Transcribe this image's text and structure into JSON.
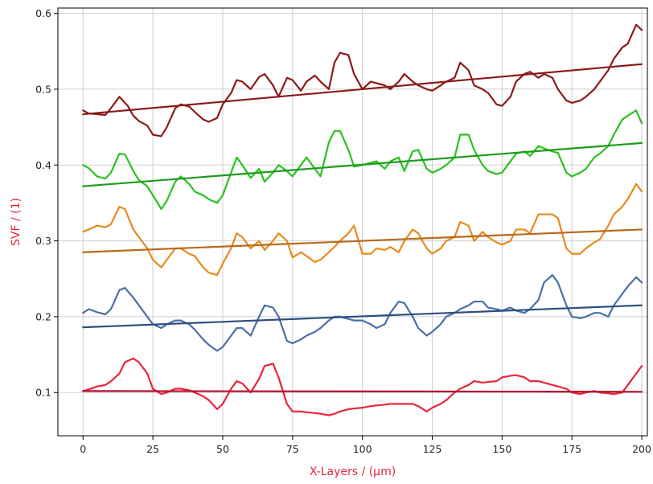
{
  "chart_data": {
    "type": "line",
    "title": "",
    "xlabel": "X-Layers / (μm)",
    "ylabel": "SVF / (1)",
    "label_color": "#e8253c",
    "xlim": [
      -9,
      202
    ],
    "ylim": [
      0.043,
      0.607
    ],
    "grid": true,
    "xticks": [
      {
        "value": 0,
        "label": "0"
      },
      {
        "value": 25,
        "label": "25"
      },
      {
        "value": 50,
        "label": "50"
      },
      {
        "value": 75,
        "label": "75"
      },
      {
        "value": 100,
        "label": "100"
      },
      {
        "value": 125,
        "label": "125"
      },
      {
        "value": 150,
        "label": "150"
      },
      {
        "value": 175,
        "label": "175"
      },
      {
        "value": 200,
        "label": "200"
      }
    ],
    "yticks": [
      {
        "value": 0.1,
        "label": "0.1"
      },
      {
        "value": 0.2,
        "label": "0.2"
      },
      {
        "value": 0.3,
        "label": "0.3"
      },
      {
        "value": 0.4,
        "label": "0.4"
      },
      {
        "value": 0.5,
        "label": "0.5"
      },
      {
        "value": 0.6,
        "label": "0.6"
      }
    ],
    "series": [
      {
        "color": "#8b1a1a",
        "x": [
          0,
          2,
          5,
          8,
          10,
          13,
          16,
          18,
          20,
          23,
          25,
          28,
          30,
          33,
          35,
          38,
          40,
          43,
          45,
          48,
          50,
          53,
          55,
          57,
          60,
          63,
          65,
          68,
          70,
          73,
          75,
          78,
          80,
          83,
          85,
          88,
          90,
          92,
          95,
          97,
          100,
          103,
          105,
          108,
          110,
          113,
          115,
          118,
          120,
          123,
          125,
          128,
          130,
          133,
          135,
          138,
          140,
          143,
          145,
          148,
          150,
          153,
          155,
          158,
          160,
          163,
          165,
          168,
          170,
          173,
          175,
          178,
          180,
          183,
          185,
          188,
          190,
          193,
          195,
          198,
          200
        ],
        "y": [
          0.472,
          0.468,
          0.467,
          0.466,
          0.475,
          0.49,
          0.478,
          0.465,
          0.458,
          0.452,
          0.44,
          0.438,
          0.45,
          0.475,
          0.48,
          0.477,
          0.47,
          0.46,
          0.457,
          0.462,
          0.48,
          0.495,
          0.512,
          0.51,
          0.5,
          0.516,
          0.52,
          0.505,
          0.49,
          0.515,
          0.512,
          0.498,
          0.51,
          0.518,
          0.51,
          0.5,
          0.535,
          0.548,
          0.545,
          0.52,
          0.5,
          0.51,
          0.508,
          0.505,
          0.5,
          0.51,
          0.52,
          0.51,
          0.505,
          0.5,
          0.498,
          0.505,
          0.51,
          0.515,
          0.535,
          0.525,
          0.505,
          0.5,
          0.495,
          0.48,
          0.478,
          0.49,
          0.51,
          0.52,
          0.523,
          0.515,
          0.52,
          0.515,
          0.5,
          0.485,
          0.482,
          0.485,
          0.49,
          0.5,
          0.51,
          0.525,
          0.54,
          0.555,
          0.56,
          0.585,
          0.578
        ]
      },
      {
        "color": "#8b1a1a",
        "x": [
          0,
          200
        ],
        "y": [
          0.467,
          0.533
        ]
      },
      {
        "color": "#2bc11f",
        "x": [
          0,
          2,
          5,
          8,
          10,
          13,
          15,
          18,
          20,
          23,
          25,
          28,
          30,
          33,
          35,
          38,
          40,
          43,
          45,
          48,
          50,
          53,
          55,
          57,
          60,
          63,
          65,
          68,
          70,
          73,
          75,
          78,
          80,
          83,
          85,
          88,
          90,
          92,
          95,
          97,
          100,
          103,
          105,
          108,
          110,
          113,
          115,
          118,
          120,
          123,
          125,
          128,
          130,
          133,
          135,
          138,
          140,
          143,
          145,
          148,
          150,
          153,
          155,
          158,
          160,
          163,
          165,
          168,
          170,
          173,
          175,
          178,
          180,
          183,
          185,
          188,
          190,
          193,
          195,
          198,
          200
        ],
        "y": [
          0.4,
          0.396,
          0.385,
          0.382,
          0.39,
          0.415,
          0.414,
          0.392,
          0.38,
          0.372,
          0.36,
          0.342,
          0.353,
          0.378,
          0.385,
          0.375,
          0.365,
          0.36,
          0.355,
          0.35,
          0.36,
          0.39,
          0.41,
          0.4,
          0.383,
          0.395,
          0.378,
          0.39,
          0.4,
          0.392,
          0.385,
          0.4,
          0.41,
          0.395,
          0.385,
          0.43,
          0.445,
          0.445,
          0.42,
          0.398,
          0.4,
          0.403,
          0.405,
          0.395,
          0.405,
          0.41,
          0.392,
          0.418,
          0.42,
          0.395,
          0.39,
          0.395,
          0.4,
          0.41,
          0.44,
          0.44,
          0.42,
          0.4,
          0.392,
          0.388,
          0.39,
          0.405,
          0.415,
          0.418,
          0.412,
          0.425,
          0.422,
          0.418,
          0.416,
          0.39,
          0.385,
          0.39,
          0.395,
          0.41,
          0.415,
          0.425,
          0.44,
          0.46,
          0.465,
          0.472,
          0.455
        ]
      },
      {
        "color": "#1e9b1e",
        "x": [
          0,
          200
        ],
        "y": [
          0.372,
          0.429
        ]
      },
      {
        "color": "#e88a1c",
        "x": [
          0,
          2,
          5,
          8,
          10,
          13,
          15,
          18,
          20,
          23,
          25,
          28,
          30,
          33,
          35,
          38,
          40,
          43,
          45,
          48,
          50,
          53,
          55,
          57,
          60,
          63,
          65,
          68,
          70,
          73,
          75,
          78,
          80,
          83,
          85,
          88,
          90,
          92,
          95,
          97,
          100,
          103,
          105,
          108,
          110,
          113,
          115,
          118,
          120,
          123,
          125,
          128,
          130,
          133,
          135,
          138,
          140,
          143,
          145,
          148,
          150,
          153,
          155,
          158,
          160,
          163,
          165,
          168,
          170,
          173,
          175,
          178,
          180,
          183,
          185,
          188,
          190,
          193,
          195,
          198,
          200
        ],
        "y": [
          0.312,
          0.315,
          0.32,
          0.318,
          0.322,
          0.345,
          0.342,
          0.315,
          0.305,
          0.29,
          0.275,
          0.265,
          0.275,
          0.29,
          0.29,
          0.283,
          0.28,
          0.265,
          0.258,
          0.255,
          0.27,
          0.29,
          0.31,
          0.305,
          0.29,
          0.3,
          0.288,
          0.3,
          0.31,
          0.3,
          0.278,
          0.285,
          0.28,
          0.272,
          0.275,
          0.285,
          0.292,
          0.3,
          0.31,
          0.32,
          0.283,
          0.283,
          0.29,
          0.288,
          0.292,
          0.285,
          0.3,
          0.315,
          0.31,
          0.29,
          0.283,
          0.29,
          0.3,
          0.305,
          0.325,
          0.32,
          0.3,
          0.312,
          0.305,
          0.298,
          0.295,
          0.3,
          0.315,
          0.315,
          0.31,
          0.335,
          0.335,
          0.335,
          0.33,
          0.29,
          0.283,
          0.283,
          0.29,
          0.298,
          0.302,
          0.32,
          0.335,
          0.345,
          0.355,
          0.375,
          0.365
        ]
      },
      {
        "color": "#b86a1c",
        "x": [
          0,
          200
        ],
        "y": [
          0.285,
          0.315
        ]
      },
      {
        "color": "#4a6fa8",
        "x": [
          0,
          2,
          5,
          8,
          10,
          13,
          15,
          18,
          20,
          23,
          25,
          28,
          30,
          33,
          35,
          38,
          40,
          43,
          45,
          48,
          50,
          53,
          55,
          57,
          60,
          63,
          65,
          68,
          70,
          73,
          75,
          78,
          80,
          83,
          85,
          88,
          90,
          92,
          95,
          97,
          100,
          103,
          105,
          108,
          110,
          113,
          115,
          118,
          120,
          123,
          125,
          128,
          130,
          133,
          135,
          138,
          140,
          143,
          145,
          148,
          150,
          153,
          155,
          158,
          160,
          163,
          165,
          168,
          170,
          173,
          175,
          178,
          180,
          183,
          185,
          188,
          190,
          193,
          195,
          198,
          200
        ],
        "y": [
          0.205,
          0.21,
          0.206,
          0.203,
          0.21,
          0.235,
          0.238,
          0.225,
          0.215,
          0.2,
          0.19,
          0.185,
          0.19,
          0.195,
          0.195,
          0.19,
          0.183,
          0.17,
          0.163,
          0.155,
          0.16,
          0.175,
          0.185,
          0.185,
          0.175,
          0.2,
          0.215,
          0.212,
          0.2,
          0.168,
          0.165,
          0.17,
          0.175,
          0.18,
          0.185,
          0.195,
          0.2,
          0.2,
          0.197,
          0.195,
          0.195,
          0.19,
          0.185,
          0.19,
          0.205,
          0.22,
          0.218,
          0.2,
          0.185,
          0.175,
          0.18,
          0.19,
          0.2,
          0.205,
          0.21,
          0.215,
          0.22,
          0.22,
          0.212,
          0.21,
          0.208,
          0.212,
          0.208,
          0.205,
          0.21,
          0.222,
          0.245,
          0.255,
          0.245,
          0.215,
          0.2,
          0.198,
          0.2,
          0.205,
          0.205,
          0.2,
          0.215,
          0.23,
          0.24,
          0.252,
          0.245
        ]
      },
      {
        "color": "#2e4f7e",
        "x": [
          0,
          200
        ],
        "y": [
          0.186,
          0.215
        ]
      },
      {
        "color": "#e8253c",
        "x": [
          0,
          2,
          5,
          8,
          10,
          13,
          15,
          18,
          20,
          23,
          25,
          28,
          30,
          33,
          35,
          38,
          40,
          43,
          45,
          48,
          50,
          53,
          55,
          57,
          60,
          63,
          65,
          68,
          70,
          73,
          75,
          78,
          80,
          83,
          85,
          88,
          90,
          92,
          95,
          97,
          100,
          103,
          105,
          108,
          110,
          113,
          115,
          118,
          120,
          123,
          125,
          128,
          130,
          133,
          135,
          138,
          140,
          143,
          145,
          148,
          150,
          153,
          155,
          158,
          160,
          163,
          165,
          168,
          170,
          173,
          175,
          178,
          180,
          183,
          185,
          188,
          190,
          193,
          195,
          198,
          200
        ],
        "y": [
          0.102,
          0.104,
          0.108,
          0.11,
          0.115,
          0.125,
          0.14,
          0.145,
          0.14,
          0.125,
          0.105,
          0.098,
          0.1,
          0.105,
          0.105,
          0.103,
          0.1,
          0.095,
          0.09,
          0.078,
          0.085,
          0.105,
          0.115,
          0.112,
          0.1,
          0.118,
          0.135,
          0.138,
          0.12,
          0.085,
          0.075,
          0.075,
          0.074,
          0.073,
          0.072,
          0.07,
          0.072,
          0.075,
          0.078,
          0.079,
          0.08,
          0.082,
          0.083,
          0.084,
          0.085,
          0.085,
          0.085,
          0.085,
          0.082,
          0.075,
          0.08,
          0.085,
          0.09,
          0.1,
          0.105,
          0.11,
          0.115,
          0.113,
          0.114,
          0.115,
          0.12,
          0.122,
          0.123,
          0.12,
          0.115,
          0.115,
          0.113,
          0.11,
          0.108,
          0.105,
          0.1,
          0.098,
          0.1,
          0.102,
          0.1,
          0.099,
          0.098,
          0.1,
          0.11,
          0.125,
          0.135
        ]
      },
      {
        "color": "#b5122e",
        "x": [
          0,
          200
        ],
        "y": [
          0.102,
          0.101
        ]
      }
    ]
  }
}
